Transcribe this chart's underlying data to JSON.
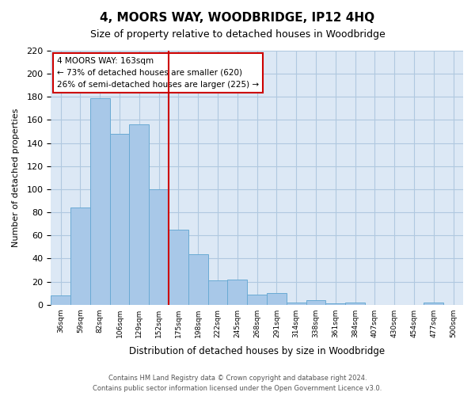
{
  "title": "4, MOORS WAY, WOODBRIDGE, IP12 4HQ",
  "subtitle": "Size of property relative to detached houses in Woodbridge",
  "xlabel": "Distribution of detached houses by size in Woodbridge",
  "ylabel": "Number of detached properties",
  "bar_labels": [
    "36sqm",
    "59sqm",
    "82sqm",
    "106sqm",
    "129sqm",
    "152sqm",
    "175sqm",
    "198sqm",
    "222sqm",
    "245sqm",
    "268sqm",
    "291sqm",
    "314sqm",
    "338sqm",
    "361sqm",
    "384sqm",
    "407sqm",
    "430sqm",
    "454sqm",
    "477sqm",
    "500sqm"
  ],
  "bar_values": [
    8,
    84,
    179,
    148,
    156,
    100,
    65,
    44,
    21,
    22,
    9,
    10,
    2,
    4,
    1,
    2,
    0,
    0,
    0,
    2,
    0
  ],
  "bar_color": "#a8c8e8",
  "bar_edge_color": "#6aaad4",
  "vline_x": 5.5,
  "vline_color": "#cc0000",
  "annotation_title": "4 MOORS WAY: 163sqm",
  "annotation_line1": "← 73% of detached houses are smaller (620)",
  "annotation_line2": "26% of semi-detached houses are larger (225) →",
  "annotation_box_color": "#ffffff",
  "annotation_box_edge": "#cc0000",
  "ylim": [
    0,
    220
  ],
  "yticks": [
    0,
    20,
    40,
    60,
    80,
    100,
    120,
    140,
    160,
    180,
    200,
    220
  ],
  "footer_line1": "Contains HM Land Registry data © Crown copyright and database right 2024.",
  "footer_line2": "Contains public sector information licensed under the Open Government Licence v3.0.",
  "bg_color": "#ffffff",
  "axes_bg_color": "#dce8f5",
  "grid_color": "#b0c8e0"
}
